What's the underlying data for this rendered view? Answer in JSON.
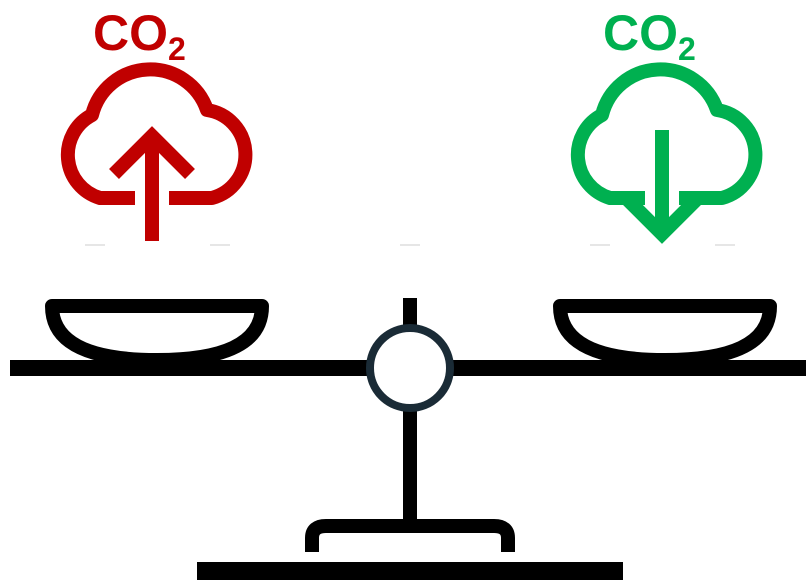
{
  "left_label": {
    "main": "CO",
    "sub": "2"
  },
  "right_label": {
    "main": "CO",
    "sub": "2"
  }
}
